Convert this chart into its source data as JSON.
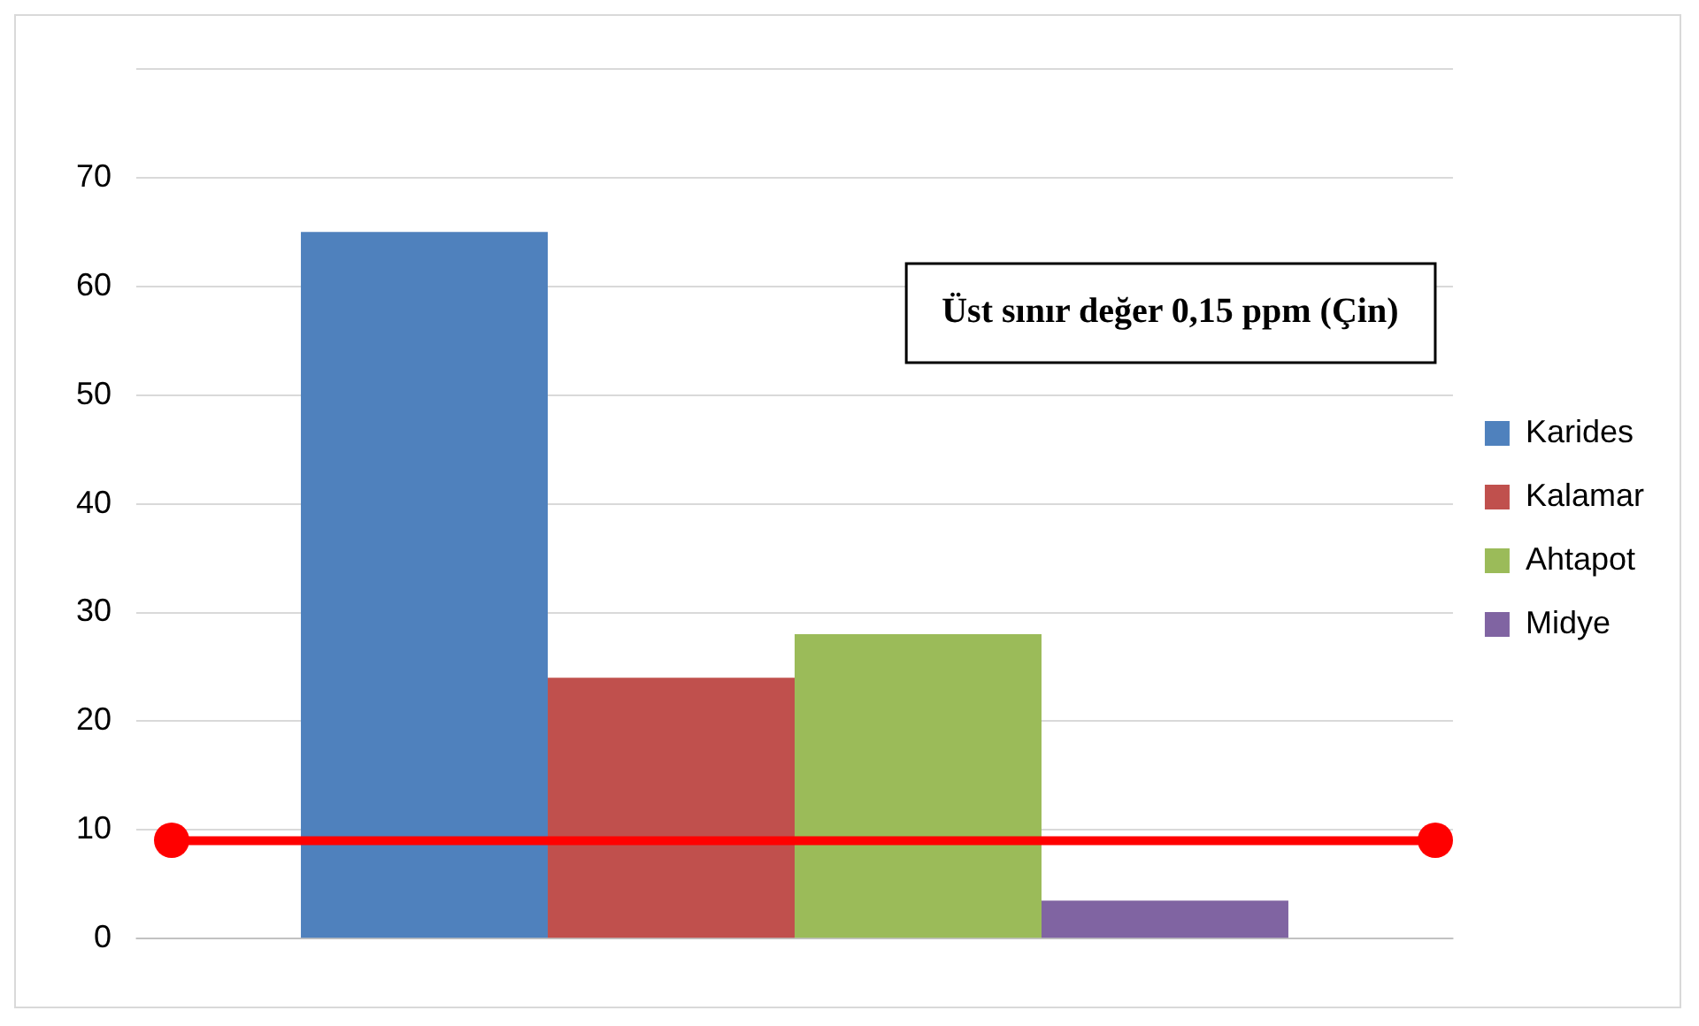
{
  "chart_data": {
    "type": "bar",
    "categories": [
      null
    ],
    "series": [
      {
        "name": "Karides",
        "color": "#4f81bd",
        "values": [
          65
        ]
      },
      {
        "name": "Kalamar",
        "color": "#c0504d",
        "values": [
          24
        ]
      },
      {
        "name": "Ahtapot",
        "color": "#9bbb59",
        "values": [
          28
        ]
      },
      {
        "name": "Midye",
        "color": "#8064a2",
        "values": [
          3.5
        ]
      }
    ],
    "ylim": [
      0,
      80
    ],
    "yticks": [
      0,
      10,
      20,
      30,
      40,
      50,
      60,
      70,
      {
        "value": 80,
        "label": null
      }
    ],
    "grid": "y",
    "legend": "right",
    "annotations": [
      "Üst sınır değer 0,15 ppm (Çin)"
    ],
    "ref_lines": [
      {
        "axis": "y",
        "value": 9,
        "color": "#ff0000"
      }
    ]
  }
}
